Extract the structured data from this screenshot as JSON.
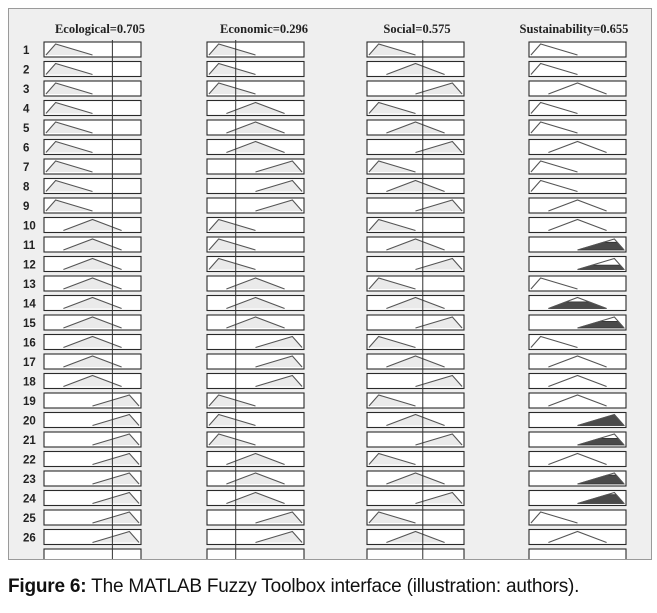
{
  "figure": {
    "columns": [
      {
        "name": "Ecological",
        "value": "0.705"
      },
      {
        "name": "Economic",
        "value": "0.296"
      },
      {
        "name": "Social",
        "value": "0.575"
      },
      {
        "name": "Sustainability",
        "value": "0.655"
      }
    ],
    "rule_numbers": [
      "1",
      "2",
      "3",
      "4",
      "5",
      "6",
      "7",
      "8",
      "9",
      "10",
      "11",
      "12",
      "13",
      "14",
      "15",
      "16",
      "17",
      "18",
      "19",
      "20",
      "21",
      "22",
      "23",
      "24",
      "25",
      "26"
    ],
    "rules": [
      {
        "ecological": "low",
        "economic": "low",
        "social": "low",
        "sustainability": "low"
      },
      {
        "ecological": "low",
        "economic": "low",
        "social": "medium",
        "sustainability": "low"
      },
      {
        "ecological": "low",
        "economic": "low",
        "social": "high",
        "sustainability": "medium"
      },
      {
        "ecological": "low",
        "economic": "medium",
        "social": "low",
        "sustainability": "low"
      },
      {
        "ecological": "low",
        "economic": "medium",
        "social": "medium",
        "sustainability": "low"
      },
      {
        "ecological": "low",
        "economic": "medium",
        "social": "high",
        "sustainability": "medium"
      },
      {
        "ecological": "low",
        "economic": "high",
        "social": "low",
        "sustainability": "low"
      },
      {
        "ecological": "low",
        "economic": "high",
        "social": "medium",
        "sustainability": "low"
      },
      {
        "ecological": "low",
        "economic": "high",
        "social": "high",
        "sustainability": "medium"
      },
      {
        "ecological": "medium",
        "economic": "low",
        "social": "low",
        "sustainability": "medium"
      },
      {
        "ecological": "medium",
        "economic": "low",
        "social": "medium",
        "sustainability": "high"
      },
      {
        "ecological": "medium",
        "economic": "low",
        "social": "high",
        "sustainability": "high"
      },
      {
        "ecological": "medium",
        "economic": "medium",
        "social": "low",
        "sustainability": "low"
      },
      {
        "ecological": "medium",
        "economic": "medium",
        "social": "medium",
        "sustainability": "medium"
      },
      {
        "ecological": "medium",
        "economic": "medium",
        "social": "high",
        "sustainability": "high"
      },
      {
        "ecological": "medium",
        "economic": "high",
        "social": "low",
        "sustainability": "low"
      },
      {
        "ecological": "medium",
        "economic": "high",
        "social": "medium",
        "sustainability": "medium"
      },
      {
        "ecological": "medium",
        "economic": "high",
        "social": "high",
        "sustainability": "medium"
      },
      {
        "ecological": "high",
        "economic": "low",
        "social": "low",
        "sustainability": "medium"
      },
      {
        "ecological": "high",
        "economic": "low",
        "social": "medium",
        "sustainability": "high"
      },
      {
        "ecological": "high",
        "economic": "low",
        "social": "high",
        "sustainability": "high"
      },
      {
        "ecological": "high",
        "economic": "medium",
        "social": "low",
        "sustainability": "medium"
      },
      {
        "ecological": "high",
        "economic": "medium",
        "social": "medium",
        "sustainability": "high"
      },
      {
        "ecological": "high",
        "economic": "medium",
        "social": "high",
        "sustainability": "high"
      },
      {
        "ecological": "high",
        "economic": "high",
        "social": "low",
        "sustainability": "low"
      },
      {
        "ecological": "high",
        "economic": "high",
        "social": "medium",
        "sustainability": "medium"
      }
    ],
    "sustainability_firing": [
      0,
      0,
      0,
      0,
      0,
      0,
      0,
      0,
      0,
      0,
      0.35,
      0.2,
      0,
      0.3,
      0.3,
      0,
      0,
      0,
      0,
      0.45,
      0.3,
      0,
      0.4,
      0.4,
      0,
      0
    ]
  },
  "caption": {
    "label": "Figure 6:",
    "text": " The MATLAB Fuzzy Toolbox interface (illustration: authors)."
  }
}
